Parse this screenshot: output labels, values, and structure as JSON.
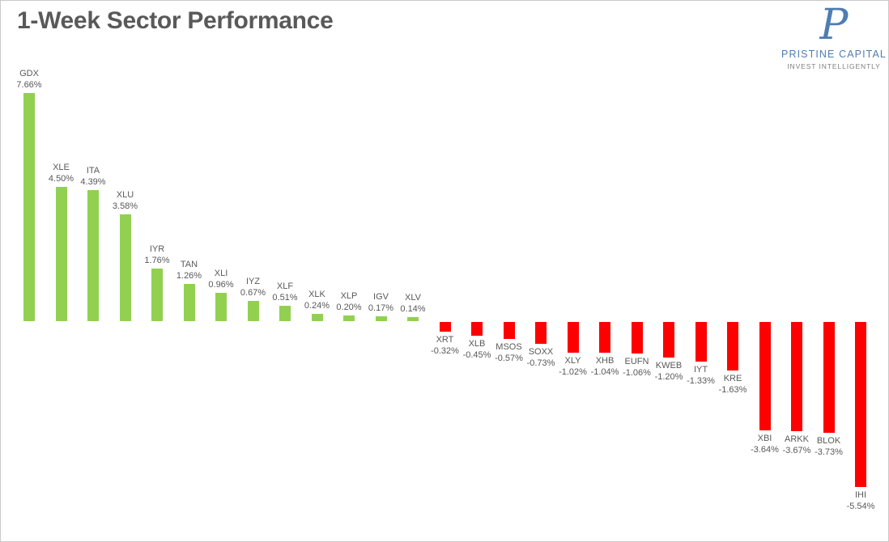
{
  "header": {
    "title": "1-Week Sector Performance"
  },
  "logo": {
    "monogram": "P",
    "name": "PRISTINE CAPITAL",
    "tagline": "INVEST INTELLIGENTLY"
  },
  "colors": {
    "positive": "#92d050",
    "negative": "#ff0000",
    "text": "#595959",
    "logo_blue": "#4e7db2",
    "tagline_gray": "#7f7f7f"
  },
  "chart_data": {
    "type": "bar",
    "title": "1-Week Sector Performance",
    "orientation": "vertical",
    "sorted": "descending",
    "grid": false,
    "axes_visible": false,
    "data_labels_position": "outside-end",
    "ylim": [
      -5.54,
      7.66
    ],
    "ylabel": "",
    "xlabel": "",
    "categories": [
      "GDX",
      "XLE",
      "ITA",
      "XLU",
      "IYR",
      "TAN",
      "XLI",
      "IYZ",
      "XLF",
      "XLK",
      "XLP",
      "IGV",
      "XLV",
      "XRT",
      "XLB",
      "MSOS",
      "SOXX",
      "XLY",
      "XHB",
      "EUFN",
      "KWEB",
      "IYT",
      "KRE",
      "XBI",
      "ARKK",
      "BLOK",
      "IHI"
    ],
    "values": [
      7.66,
      4.5,
      4.39,
      3.58,
      1.76,
      1.26,
      0.96,
      0.67,
      0.51,
      0.24,
      0.2,
      0.17,
      0.14,
      -0.32,
      -0.45,
      -0.57,
      -0.73,
      -1.02,
      -1.04,
      -1.06,
      -1.2,
      -1.33,
      -1.63,
      -3.64,
      -3.67,
      -3.73,
      -5.54
    ],
    "labels": [
      "7.66%",
      "4.50%",
      "4.39%",
      "3.58%",
      "1.76%",
      "1.26%",
      "0.96%",
      "0.67%",
      "0.51%",
      "0.24%",
      "0.20%",
      "0.17%",
      "0.14%",
      "-0.32%",
      "-0.45%",
      "-0.57%",
      "-0.73%",
      "-1.02%",
      "-1.04%",
      "-1.06%",
      "-1.20%",
      "-1.33%",
      "-1.63%",
      "-3.64%",
      "-3.67%",
      "-3.73%",
      "-5.54%"
    ]
  }
}
